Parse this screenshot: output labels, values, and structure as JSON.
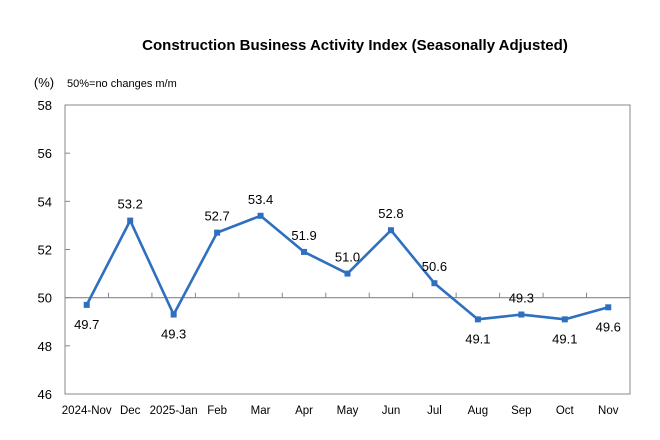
{
  "chart_data": {
    "type": "line",
    "title": "Construction Business Activity Index (Seasonally Adjusted)",
    "ylabel": "(%)",
    "annotation": "50%=no changes m/m",
    "xlabel": "",
    "ylim": [
      46,
      58
    ],
    "yticks": [
      46,
      48,
      50,
      52,
      54,
      56,
      58
    ],
    "reference_line": 50,
    "grid": false,
    "categories": [
      "2024-Nov",
      "Dec",
      "2025-Jan",
      "Feb",
      "Mar",
      "Apr",
      "May",
      "Jun",
      "Jul",
      "Aug",
      "Sep",
      "Oct",
      "Nov"
    ],
    "series": [
      {
        "name": "Construction Business Activity Index",
        "color": "#2E6FC0",
        "values": [
          49.7,
          53.2,
          49.3,
          52.7,
          53.4,
          51.9,
          51.0,
          52.8,
          50.6,
          49.1,
          49.3,
          49.1,
          49.6
        ],
        "labels": [
          "49.7",
          "53.2",
          "49.3",
          "52.7",
          "53.4",
          "51.9",
          "51.0",
          "52.8",
          "50.6",
          "49.1",
          "49.3",
          "49.1",
          "49.6"
        ],
        "label_positions": [
          "below",
          "above",
          "below",
          "above",
          "above",
          "above",
          "above",
          "above",
          "above",
          "below",
          "above",
          "below",
          "below"
        ]
      }
    ]
  }
}
